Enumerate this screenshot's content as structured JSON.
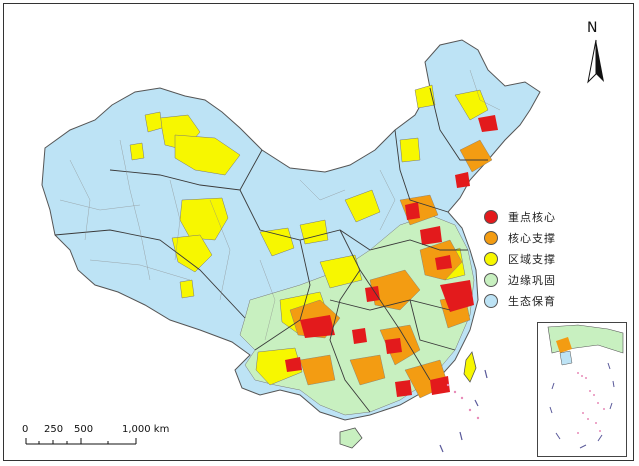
{
  "legend": {
    "items": [
      {
        "label": "重点核心",
        "color": "#e31a1c"
      },
      {
        "label": "核心支撑",
        "color": "#f39c12"
      },
      {
        "label": "区域支撑",
        "color": "#f7f700"
      },
      {
        "label": "边缘巩固",
        "color": "#c8f0c0"
      },
      {
        "label": "生态保育",
        "color": "#bde3f5"
      }
    ]
  },
  "north_arrow": {
    "label": "N"
  },
  "scale_bar": {
    "ticks": [
      "0",
      "250",
      "500",
      "1,000 km"
    ]
  },
  "colors": {
    "ecological": "#bde3f5",
    "core": "#e31a1c",
    "support": "#f39c12",
    "regional": "#f7f700",
    "edge": "#c8f0c0",
    "border": "#6a6a6a"
  }
}
